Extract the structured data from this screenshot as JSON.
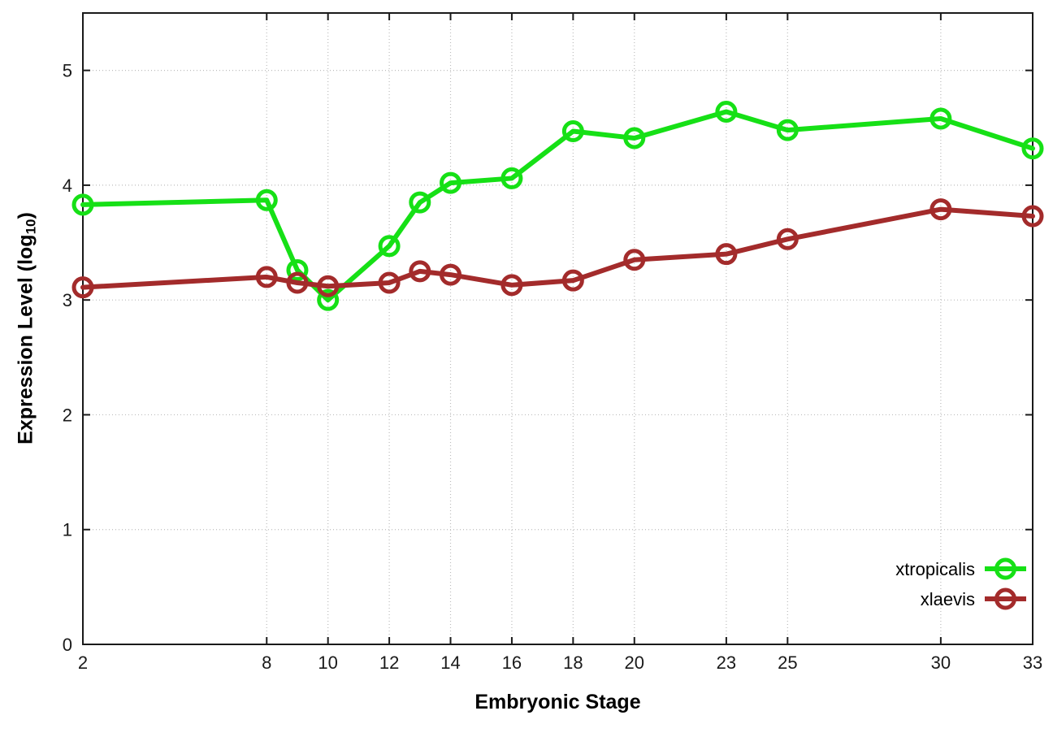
{
  "chart_data": {
    "type": "line",
    "title": "",
    "xlabel": "Embryonic Stage",
    "ylabel": {
      "pre": "Expression Level (log",
      "sub": "10",
      "post": ")"
    },
    "x": [
      2,
      8,
      9,
      10,
      12,
      13,
      14,
      16,
      18,
      20,
      23,
      25,
      30,
      33
    ],
    "xticks": [
      2,
      8,
      10,
      12,
      14,
      16,
      18,
      20,
      23,
      25,
      30,
      33
    ],
    "yticks": [
      0,
      1,
      2,
      3,
      4,
      5
    ],
    "xlim": [
      2,
      33
    ],
    "ylim": [
      0,
      5.5
    ],
    "grid": true,
    "legend_position": "inside-right-lower",
    "series": [
      {
        "name": "xtropicalis",
        "color": "#16e016",
        "values": [
          3.83,
          3.87,
          3.26,
          3.0,
          3.47,
          3.85,
          4.02,
          4.06,
          4.47,
          4.41,
          4.64,
          4.48,
          4.58,
          4.32
        ]
      },
      {
        "name": "xlaevis",
        "color": "#a32b2b",
        "values": [
          3.11,
          3.2,
          3.15,
          3.12,
          3.15,
          3.25,
          3.22,
          3.13,
          3.17,
          3.35,
          3.4,
          3.53,
          3.79,
          3.73
        ]
      }
    ],
    "style": {
      "border_color": "#1a1a1a",
      "grid_color": "#bcbcbc",
      "tick_label_color": "#1a1a1a",
      "line_width": 6,
      "marker_radius": 11,
      "marker_stroke": 5
    }
  }
}
